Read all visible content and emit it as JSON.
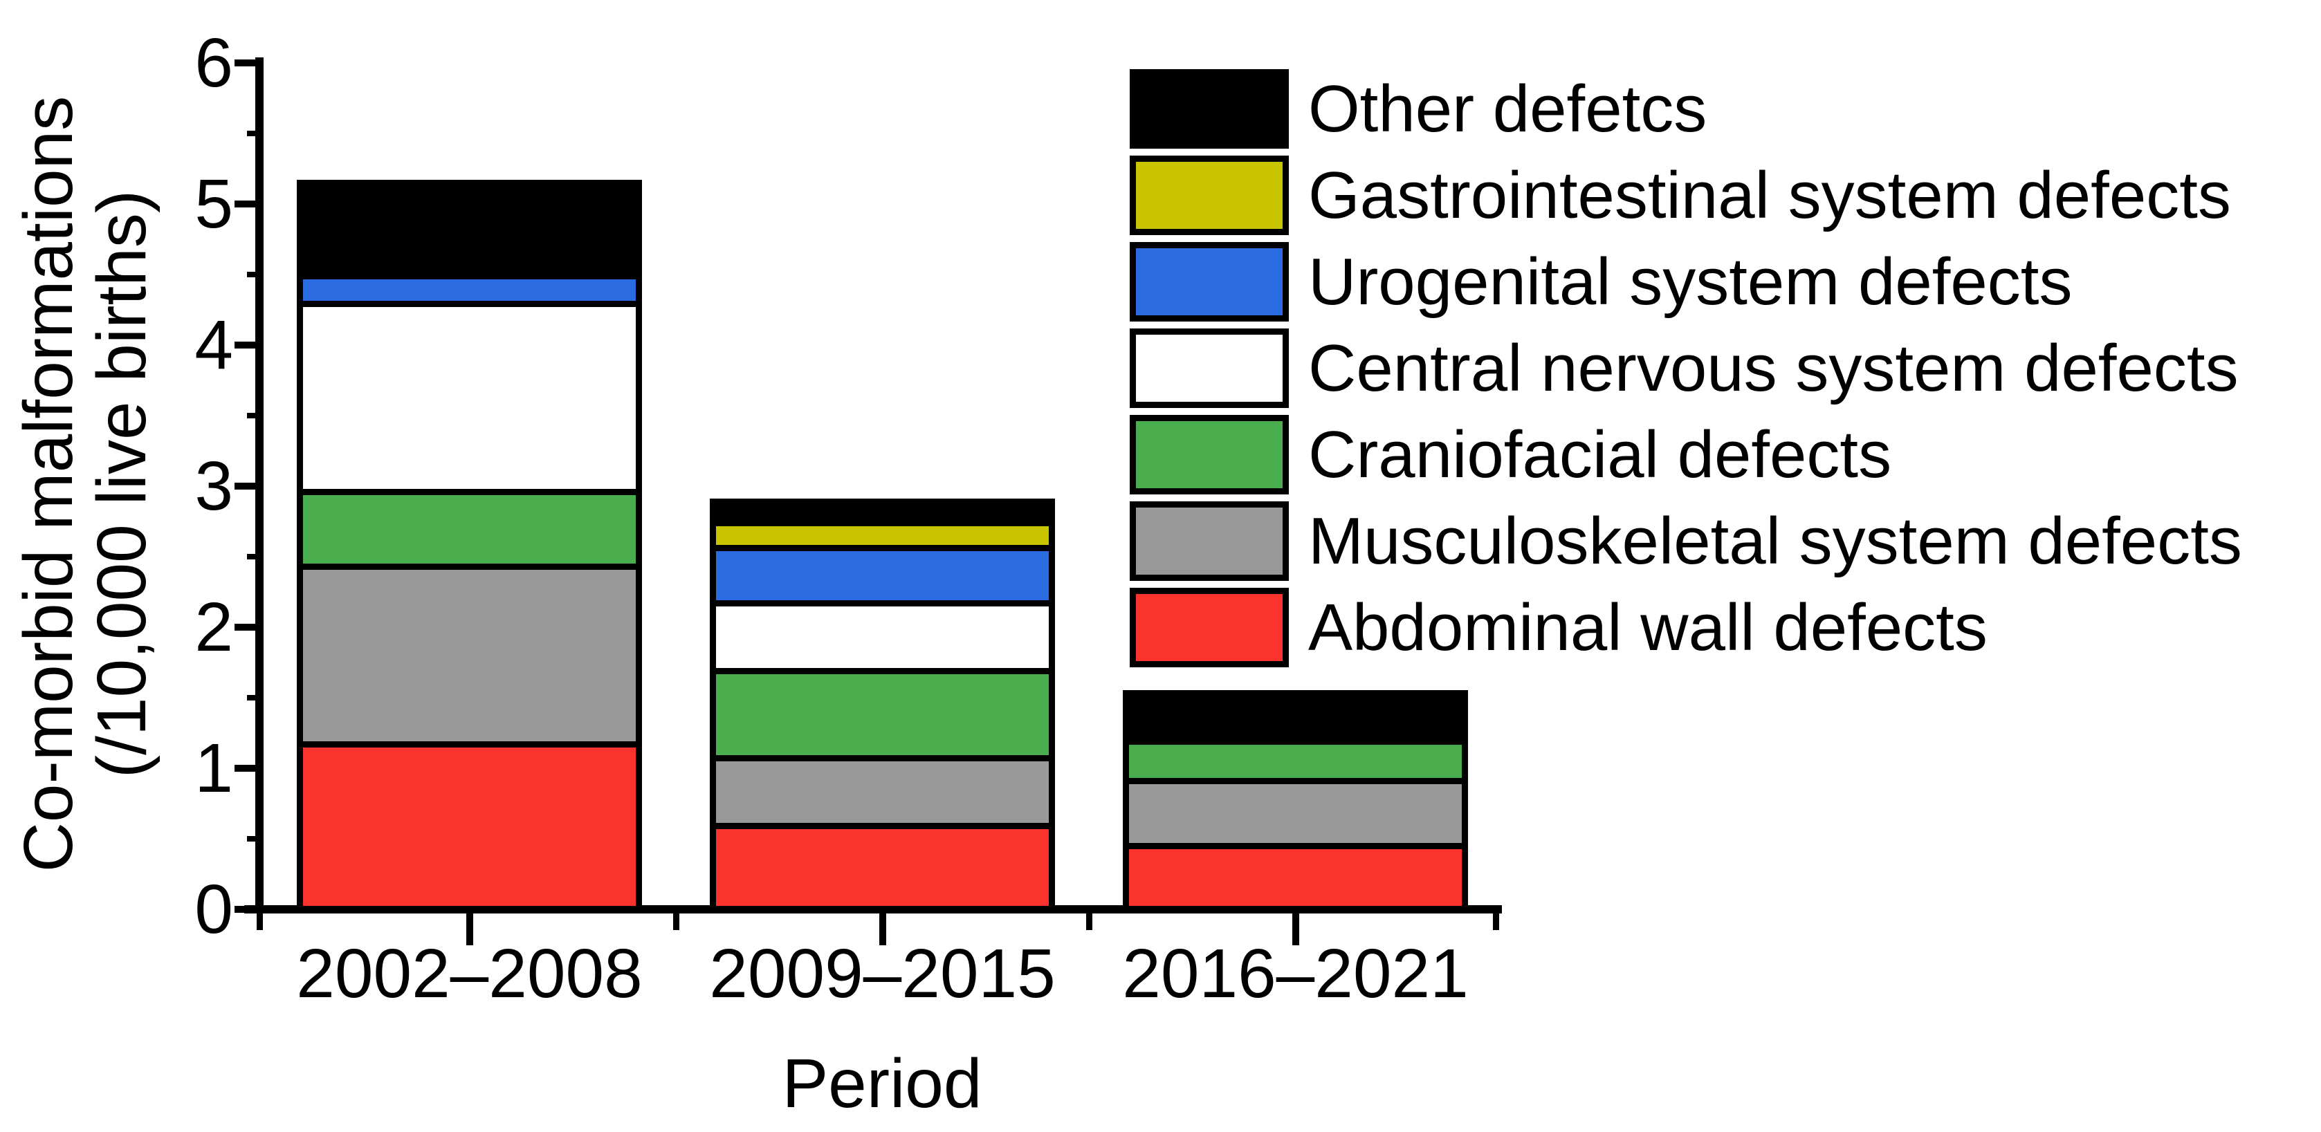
{
  "figure": {
    "ylabel_line1": "Co-morbid malformations",
    "ylabel_line2": "(/10,000 live births)",
    "xlabel": "Period"
  },
  "chart_data": {
    "type": "bar",
    "stacked": true,
    "title": "",
    "xlabel": "Period",
    "ylabel": "Co-morbid malformations (/10,000 live births)",
    "categories": [
      "2002–2008",
      "2009–2015",
      "2016–2021"
    ],
    "series": [
      {
        "name": "Abdominal wall defects",
        "color": "#FA332C",
        "values": [
          1.17,
          0.59,
          0.45
        ]
      },
      {
        "name": "Musculoskeletal system defects",
        "color": "#999999",
        "values": [
          1.26,
          0.48,
          0.46
        ]
      },
      {
        "name": "Craniofacial defects",
        "color": "#4AAE4E",
        "values": [
          0.53,
          0.62,
          0.28
        ]
      },
      {
        "name": "Central nervous system defects",
        "color": "#FFFFFF",
        "values": [
          1.33,
          0.48,
          0.0
        ]
      },
      {
        "name": "Urogenital system defects",
        "color": "#2A6BE2",
        "values": [
          0.2,
          0.39,
          0.0
        ]
      },
      {
        "name": "Gastrointestinal system defects",
        "color": "#C8C400",
        "values": [
          0.0,
          0.18,
          0.0
        ]
      },
      {
        "name": "Other defetcs",
        "color": "#000000",
        "values": [
          0.66,
          0.15,
          0.34
        ]
      }
    ],
    "stack_order": "first series at bottom",
    "totals": [
      5.15,
      2.89,
      1.53
    ],
    "ylim": [
      0,
      6
    ],
    "yticks": [
      0,
      1,
      2,
      3,
      4,
      5,
      6
    ],
    "y_minor_tick_step": 0.5,
    "grid": false,
    "legend_position": "upper right",
    "bar_outline_color": "#000000"
  },
  "legend": {
    "items": [
      {
        "label": "Other defetcs",
        "color": "#000000"
      },
      {
        "label": "Gastrointestinal system defects",
        "color": "#C8C400"
      },
      {
        "label": "Urogenital system defects",
        "color": "#2A6BE2"
      },
      {
        "label": "Central nervous system defects",
        "color": "#FFFFFF"
      },
      {
        "label": "Craniofacial defects",
        "color": "#4AAE4E"
      },
      {
        "label": "Musculoskeletal system defects",
        "color": "#999999"
      },
      {
        "label": "Abdominal wall defects",
        "color": "#FA332C"
      }
    ]
  }
}
